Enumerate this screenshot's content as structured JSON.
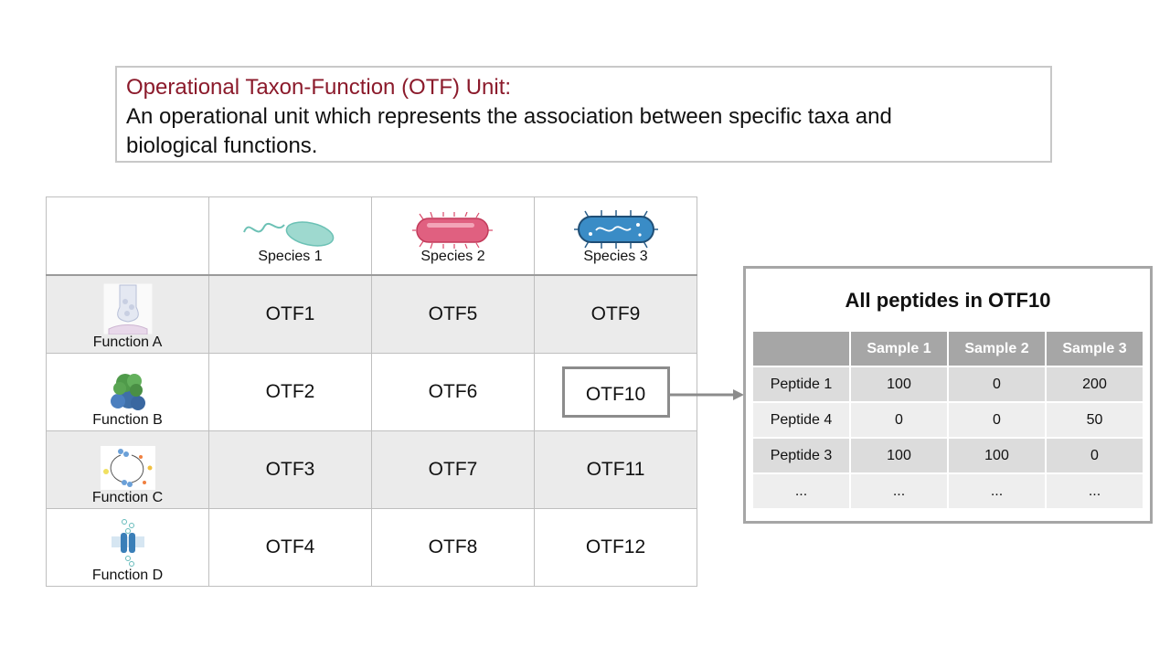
{
  "definition": {
    "title": "Operational Taxon-Function (OTF) Unit:",
    "text_line1": "An operational unit which represents the association between specific taxa and",
    "text_line2": "biological functions."
  },
  "grid": {
    "species": [
      "Species 1",
      "Species 2",
      "Species 3"
    ],
    "functions": [
      "Function A",
      "Function B",
      "Function C",
      "Function D"
    ],
    "cells": [
      [
        "OTF1",
        "OTF5",
        "OTF9"
      ],
      [
        "OTF2",
        "OTF6",
        "OTF10"
      ],
      [
        "OTF3",
        "OTF7",
        "OTF11"
      ],
      [
        "OTF4",
        "OTF8",
        "OTF12"
      ]
    ],
    "highlighted": "OTF10"
  },
  "panel": {
    "title": "All peptides in OTF10",
    "columns": [
      "",
      "Sample 1",
      "Sample 2",
      "Sample 3"
    ],
    "rows": [
      [
        "Peptide 1",
        "100",
        "0",
        "200"
      ],
      [
        "Peptide 4",
        "0",
        "0",
        "50"
      ],
      [
        "Peptide 3",
        "100",
        "100",
        "0"
      ],
      [
        "...",
        "...",
        "...",
        "..."
      ]
    ]
  },
  "colors": {
    "title_red": "#8b1a2b",
    "species1": "#8fd3c9",
    "species2": "#d94a6a",
    "species3": "#3a8cc6",
    "header_gray": "#a6a6a6"
  }
}
